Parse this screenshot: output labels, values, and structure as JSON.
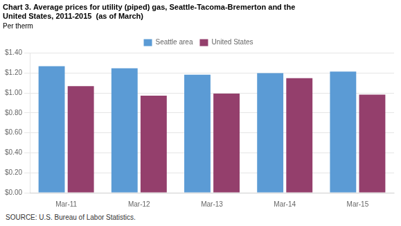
{
  "chart_data": {
    "type": "bar",
    "title": [
      "Chart 3. Average prices for utility (piped) gas, Seattle-Tacoma-Bremerton and the",
      "United States, 2011-2015  (as of March)"
    ],
    "subtitle": "Per therm",
    "annotations": [
      "SOURCE: U.S. Bureau of Labor Statistics."
    ],
    "categories": [
      "Mar-11",
      "Mar-12",
      "Mar-13",
      "Mar-14",
      "Mar-15"
    ],
    "series": [
      {
        "name": "Seattle area",
        "color": "#5B9BD5",
        "values": [
          1.267,
          1.247,
          1.183,
          1.198,
          1.214
        ]
      },
      {
        "name": "United States",
        "color": "#943F6C",
        "values": [
          1.068,
          0.972,
          0.993,
          1.147,
          0.983
        ]
      }
    ],
    "ylim": [
      0,
      1.4
    ],
    "yticks": [
      {
        "value": 0.0,
        "label": "$0.00"
      },
      {
        "value": 0.2,
        "label": "$0.20"
      },
      {
        "value": 0.4,
        "label": "$0.40"
      },
      {
        "value": 0.6,
        "label": "$0.60"
      },
      {
        "value": 0.8,
        "label": "$0.80"
      },
      {
        "value": 1.0,
        "label": "$1.00"
      },
      {
        "value": 1.2,
        "label": "$1.20"
      },
      {
        "value": 1.4,
        "label": "$1.40"
      }
    ],
    "grid": true,
    "legend": "top"
  }
}
